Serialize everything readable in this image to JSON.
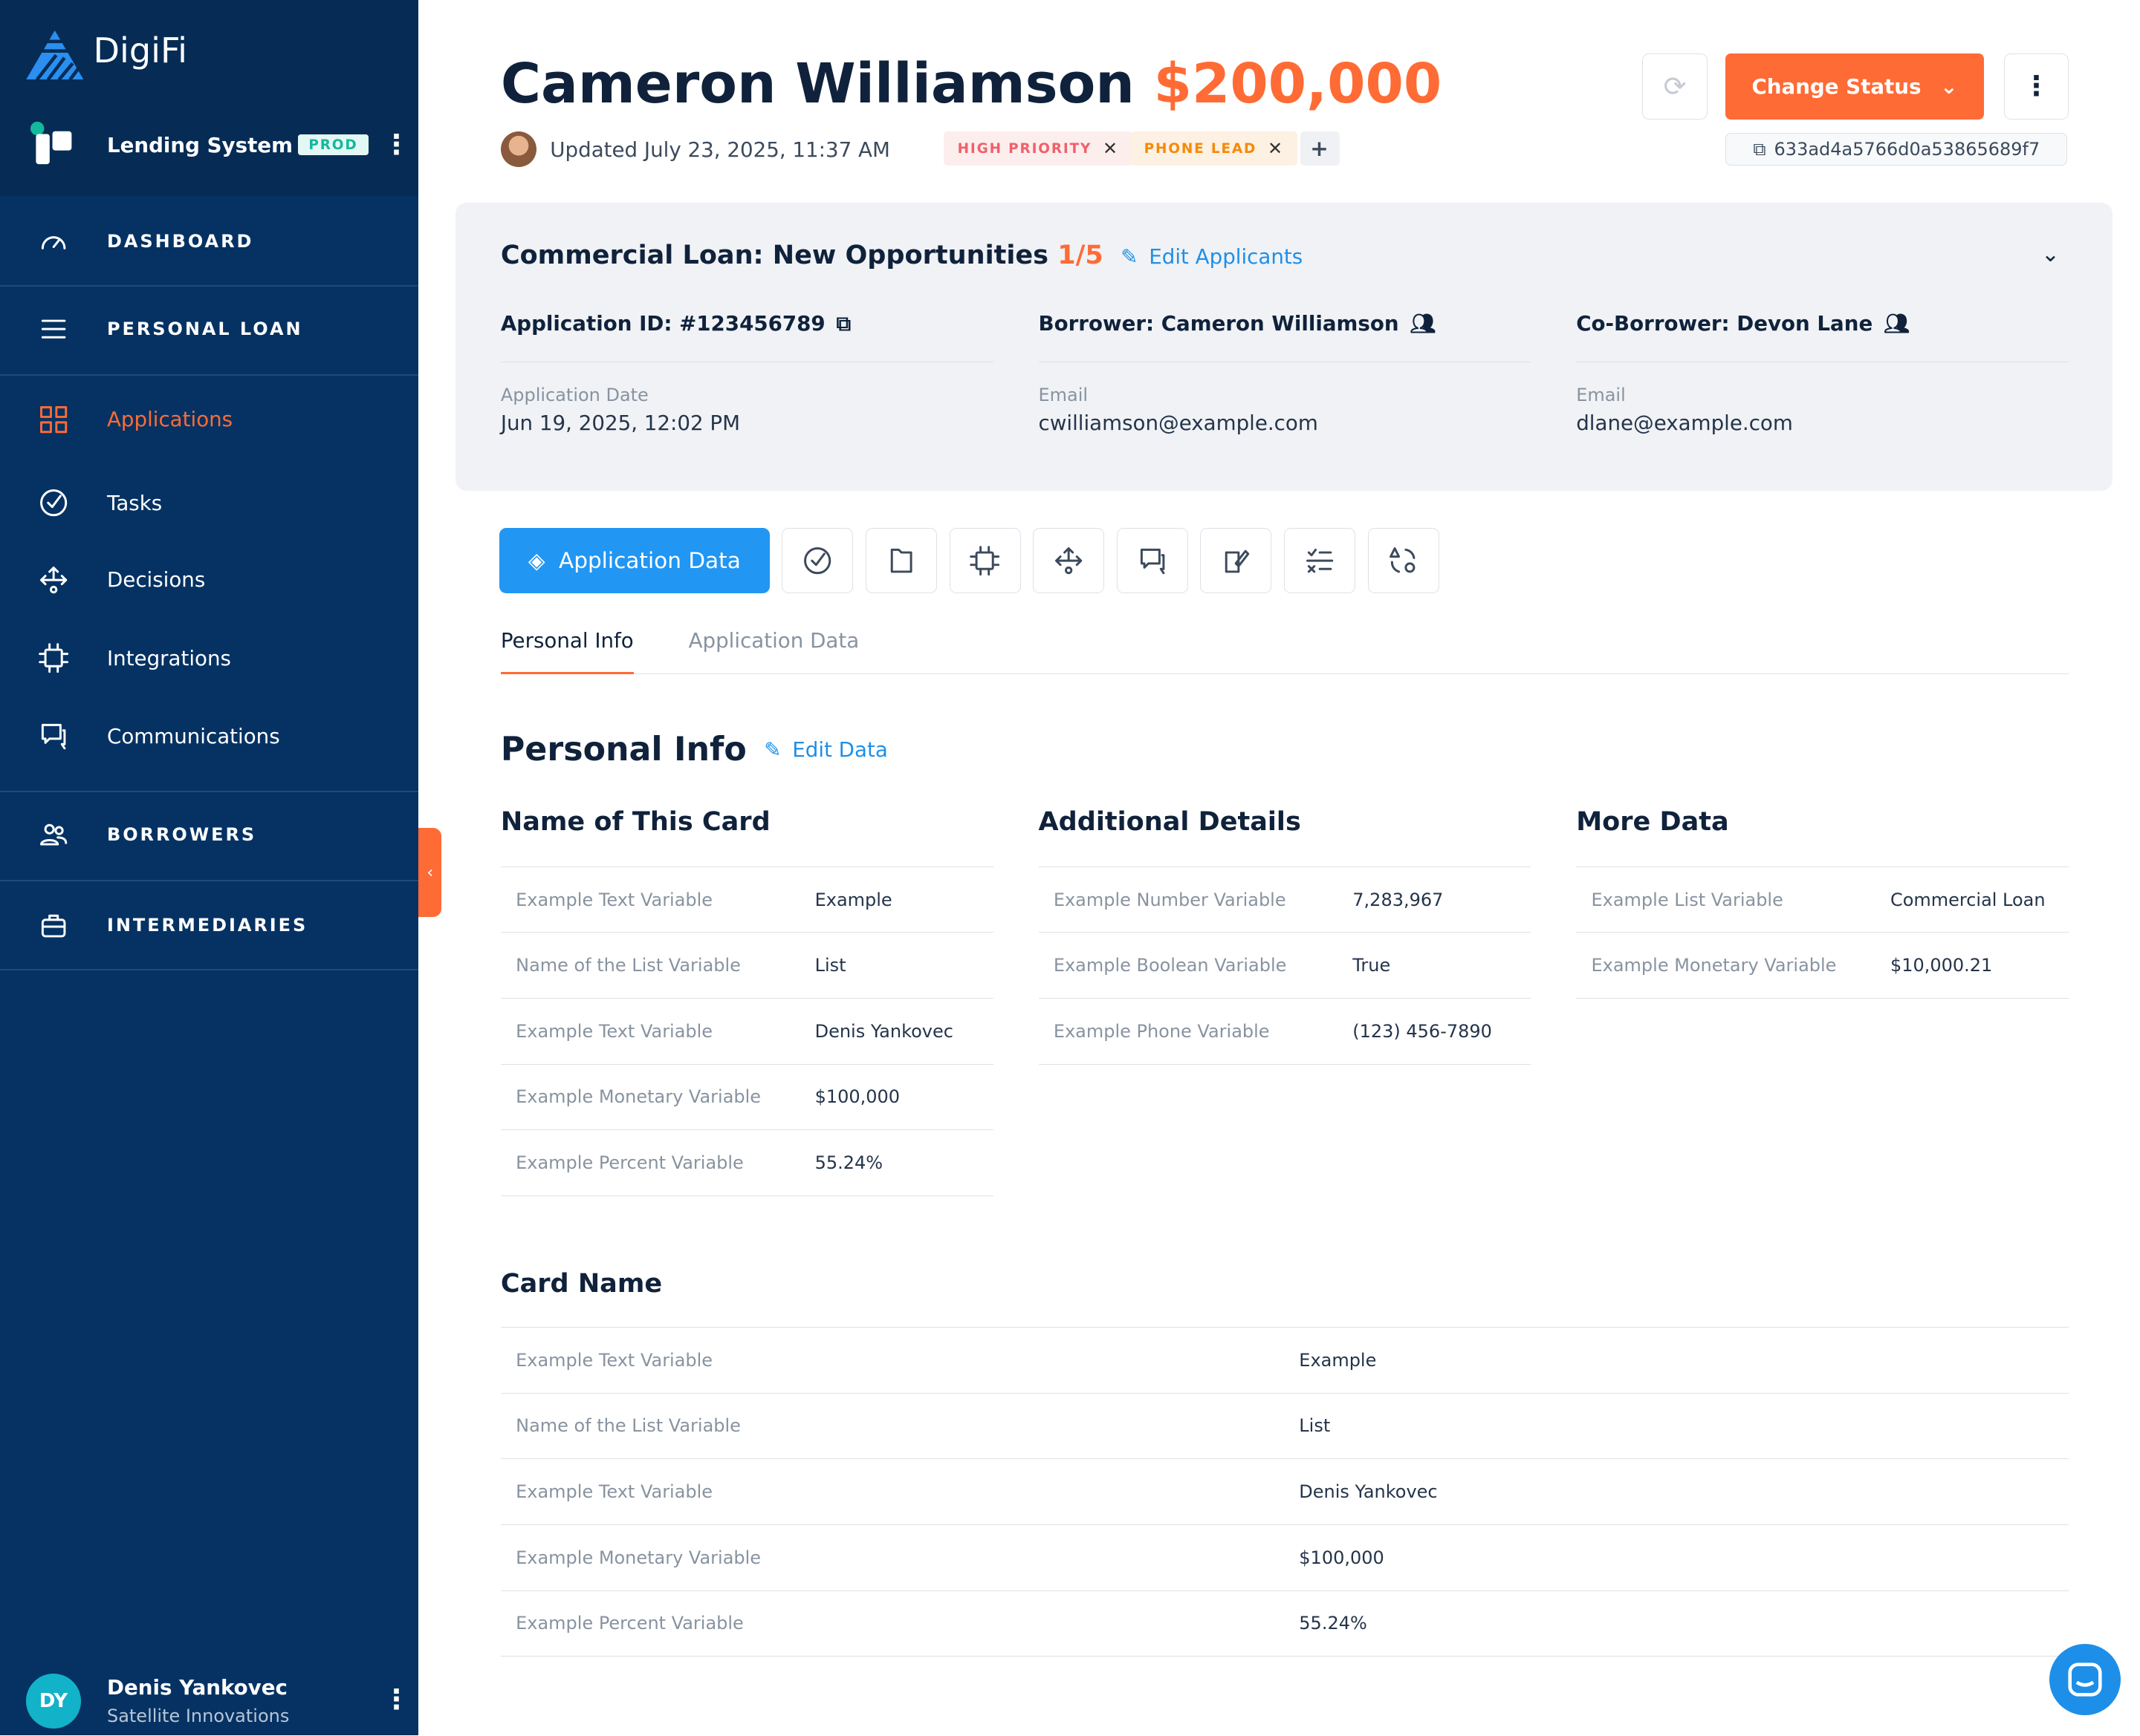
{
  "brand": {
    "name": "DigiFi"
  },
  "workspace": {
    "name": "Lending System",
    "env_badge": "PROD"
  },
  "sidebar": {
    "items": [
      {
        "label": "DASHBOARD",
        "icon": "dashboard-icon",
        "caps": true
      },
      {
        "label": "PERSONAL LOAN",
        "icon": "menu-icon",
        "caps": true
      },
      {
        "label": "Applications",
        "icon": "grid-icon",
        "active": true
      },
      {
        "label": "Tasks",
        "icon": "check-circle-icon"
      },
      {
        "label": "Decisions",
        "icon": "arrows-split-icon"
      },
      {
        "label": "Integrations",
        "icon": "chip-icon"
      },
      {
        "label": "Communications",
        "icon": "chat-icon"
      },
      {
        "label": "BORROWERS",
        "icon": "users-icon",
        "caps": true
      },
      {
        "label": "INTERMEDIARIES",
        "icon": "briefcase-icon",
        "caps": true
      }
    ]
  },
  "user": {
    "initials": "DY",
    "name": "Denis Yankovec",
    "company": "Satellite Innovations"
  },
  "header": {
    "name": "Cameron Williamson",
    "amount": "$200,000",
    "updated": "Updated July 23, 2025, 11:37 AM",
    "tags": [
      {
        "label": "HIGH PRIORITY",
        "bg": "#fdeeee",
        "fg": "#f0606a"
      },
      {
        "label": "PHONE LEAD",
        "bg": "#fdf1e4",
        "fg": "#f58a07"
      }
    ],
    "add_tag": "+",
    "change_status": "Change Status",
    "id": "633ad4a5766d0a53865689f7"
  },
  "summary": {
    "product": "Commercial Loan: New Opportunities",
    "step": "1/5",
    "edit_applicants": "Edit Applicants",
    "columns": [
      {
        "title": "Application ID: #123456789",
        "label": "Application Date",
        "value": "Jun 19, 2025, 12:02 PM"
      },
      {
        "title": "Borrower: Cameron Williamson",
        "label": "Email",
        "value": "cwilliamson@example.com"
      },
      {
        "title": "Co-Borrower: Devon Lane",
        "label": "Email",
        "value": "dlane@example.com"
      }
    ]
  },
  "toolbar": {
    "active_label": "Application Data",
    "icons": [
      "tasks-icon",
      "documents-icon",
      "integrations-icon",
      "decisions-icon",
      "comments-icon",
      "notes-icon",
      "rules-icon",
      "status-history-icon"
    ]
  },
  "tabs": [
    {
      "label": "Personal Info",
      "active": true
    },
    {
      "label": "Application Data"
    }
  ],
  "section": {
    "title": "Personal Info",
    "edit": "Edit Data"
  },
  "cards": [
    {
      "title": "Name of This Card",
      "rows": [
        [
          "Example Text Variable",
          "Example"
        ],
        [
          "Name of the List Variable",
          "List"
        ],
        [
          "Example Text Variable",
          "Denis Yankovec"
        ],
        [
          "Example Monetary Variable",
          "$100,000"
        ],
        [
          "Example Percent Variable",
          "55.24%"
        ]
      ]
    },
    {
      "title": "Additional Details",
      "rows": [
        [
          "Example Number Variable",
          "7,283,967"
        ],
        [
          "Example Boolean Variable",
          "True"
        ],
        [
          "Example Phone Variable",
          "(123) 456-7890"
        ]
      ]
    },
    {
      "title": "More Data",
      "rows": [
        [
          "Example List Variable",
          "Commercial Loan"
        ],
        [
          "Example Monetary Variable",
          "$10,000.21"
        ]
      ]
    }
  ],
  "wide_card": {
    "title": "Card Name",
    "rows": [
      [
        "Example Text Variable",
        "Example"
      ],
      [
        "Name of the List Variable",
        "List"
      ],
      [
        "Example Text Variable",
        "Denis Yankovec"
      ],
      [
        "Example Monetary Variable",
        "$100,000"
      ],
      [
        "Example Percent Variable",
        "55.24%"
      ]
    ]
  }
}
